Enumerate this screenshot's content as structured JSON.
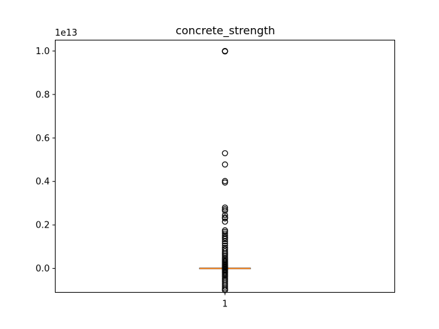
{
  "chart_data": {
    "type": "box",
    "title": "concrete_strength",
    "xlabel": "",
    "ylabel": "",
    "y_offset_label": "1e13",
    "ylim": [
      -1.1,
      10.5
    ],
    "y_scale_factor": 10000000000000.0,
    "y_ticks": [
      0.0,
      0.2,
      0.4,
      0.6,
      0.8,
      1.0
    ],
    "y_tick_labels": [
      "0.0",
      "0.2",
      "0.4",
      "0.6",
      "0.8",
      "1.0"
    ],
    "x_tick_labels": [
      "1"
    ],
    "grid": false,
    "colors": {
      "box": "#000000",
      "median": "#ff7f0e",
      "flier": "#000000"
    },
    "box": {
      "q1": 0.0,
      "median": 0.0,
      "q3": 0.0,
      "whisker_low": -0.01,
      "whisker_high": 0.01
    },
    "outliers": [
      10.0,
      9.98,
      9.99,
      5.3,
      4.78,
      4.02,
      3.95,
      2.8,
      2.72,
      2.65,
      2.45,
      2.35,
      2.3,
      2.15,
      1.75,
      1.68,
      1.6,
      1.5,
      1.42,
      1.35,
      1.25,
      1.15,
      1.05,
      0.95,
      0.88,
      0.8,
      0.72,
      0.65,
      0.58,
      0.5,
      0.44,
      0.38,
      0.32,
      0.27,
      0.22,
      0.18,
      0.14,
      0.1,
      0.07,
      0.04,
      0.02,
      -0.03,
      -0.06,
      -0.1,
      -0.15,
      -0.2,
      -0.26,
      -0.32,
      -0.38,
      -0.45,
      -0.52,
      -0.6,
      -0.68,
      -0.76,
      -0.84,
      -0.92,
      -0.98,
      -1.0
    ]
  }
}
